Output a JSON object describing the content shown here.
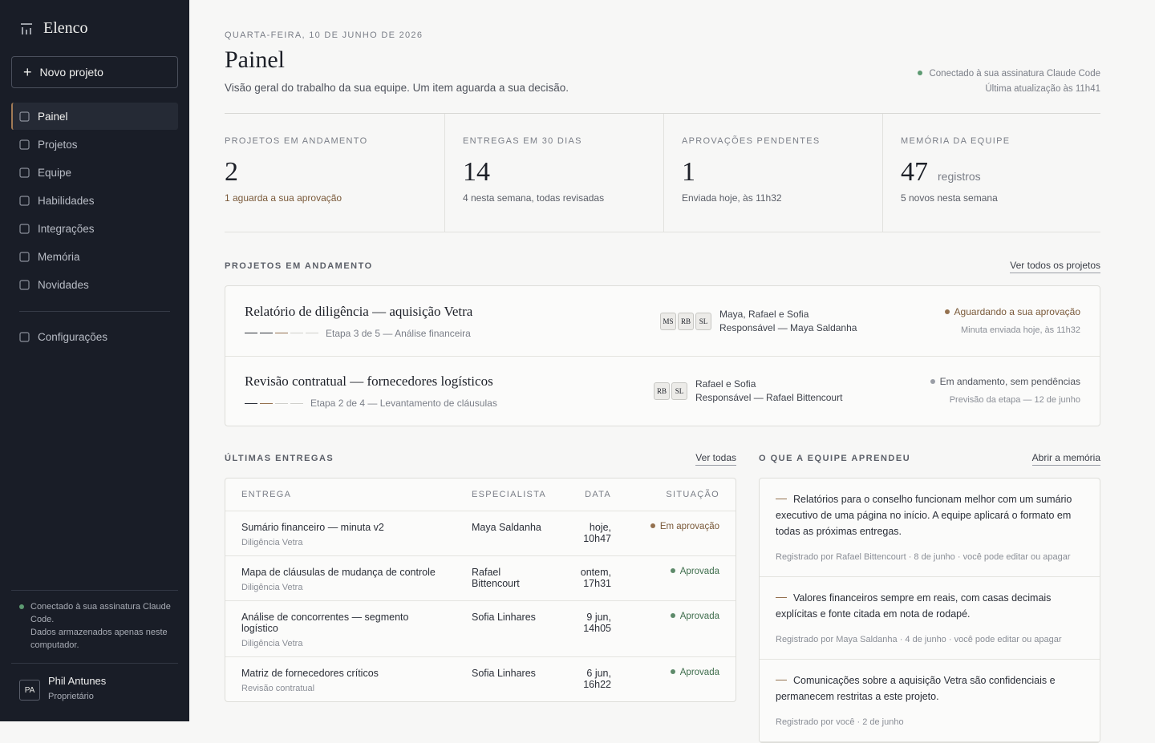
{
  "sidebar": {
    "brand": "Elenco",
    "new_project": "Novo projeto",
    "nav": [
      "Painel",
      "Projetos",
      "Equipe",
      "Habilidades",
      "Integrações",
      "Memória",
      "Novidades"
    ],
    "settings": "Configurações",
    "status": [
      "Conectado à sua assinatura Claude Code.",
      "Dados armazenados apenas neste computador."
    ],
    "user": {
      "initials": "PA",
      "name": "Phil Antunes",
      "role": "Proprietário"
    }
  },
  "header": {
    "date": "QUARTA-FEIRA, 10 DE JUNHO DE 2026",
    "title": "Painel",
    "subtitle": "Visão geral do trabalho da sua equipe. Um item aguarda a sua decisão.",
    "connection": "Conectado à sua assinatura Claude Code",
    "updated": "Última atualização às 11h41"
  },
  "stats": [
    {
      "label": "PROJETOS EM ANDAMENTO",
      "value": 2,
      "note": "1 aguarda a sua aprovação"
    },
    {
      "label": "ENTREGAS EM 30 DIAS",
      "value": 14,
      "note": "4 nesta semana, todas revisadas"
    },
    {
      "label": "APROVAÇÕES PENDENTES",
      "value": 1,
      "note": "Enviada hoje, às 11h32"
    },
    {
      "label": "MEMÓRIA DA EQUIPE",
      "value": 47,
      "unit": "registros",
      "note": "5 novos nesta semana"
    }
  ],
  "projects": {
    "title": "PROJETOS EM ANDAMENTO",
    "link": "Ver todos os projetos",
    "items": [
      {
        "name": "Relatório de diligência — aquisição Vetra",
        "stage": "Etapa 3 de 5 — Análise financeira",
        "initials": [
          "MS",
          "RB",
          "SL"
        ],
        "team": "Maya, Rafael e Sofia",
        "owner": "Responsável — Maya Saldanha",
        "status": "Aguardando a sua aprovação",
        "status_note": "Minuta enviada hoje, às 11h32"
      },
      {
        "name": "Revisão contratual — fornecedores logísticos",
        "stage": "Etapa 2 de 4 — Levantamento de cláusulas",
        "initials": [
          "RB",
          "SL"
        ],
        "team": "Rafael e Sofia",
        "owner": "Responsável — Rafael Bittencourt",
        "status": "Em andamento, sem pendências",
        "status_note": "Previsão da etapa — 12 de junho"
      }
    ]
  },
  "deliveries": {
    "title": "ÚLTIMAS ENTREGAS",
    "link": "Ver todas",
    "columns": [
      "ENTREGA",
      "ESPECIALISTA",
      "DATA",
      "SITUAÇÃO"
    ],
    "rows": [
      {
        "name": "Sumário financeiro — minuta v2",
        "project": "Diligência Vetra",
        "specialist": "Maya Saldanha",
        "date": "hoje, 10h47",
        "status": "Em aprovação"
      },
      {
        "name": "Mapa de cláusulas de mudança de controle",
        "project": "Diligência Vetra",
        "specialist": "Rafael Bittencourt",
        "date": "ontem, 17h31",
        "status": "Aprovada"
      },
      {
        "name": "Análise de concorrentes — segmento logístico",
        "project": "Diligência Vetra",
        "specialist": "Sofia Linhares",
        "date": "9 jun, 14h05",
        "status": "Aprovada"
      },
      {
        "name": "Matriz de fornecedores críticos",
        "project": "Revisão contratual",
        "specialist": "Sofia Linhares",
        "date": "6 jun, 16h22",
        "status": "Aprovada"
      }
    ]
  },
  "learnings": {
    "title": "O QUE A EQUIPE APRENDEU",
    "link": "Abrir a memória",
    "items": [
      {
        "text": "Relatórios para o conselho funcionam melhor com um sumário executivo de uma página no início. A equipe aplicará o formato em todas as próximas entregas.",
        "meta": "Registrado por Rafael Bittencourt · 8 de junho · você pode editar ou apagar"
      },
      {
        "text": "Valores financeiros sempre em reais, com casas decimais explícitas e fonte citada em nota de rodapé.",
        "meta": "Registrado por Maya Saldanha · 4 de junho · você pode editar ou apagar"
      },
      {
        "text": "Comunicações sobre a aquisição Vetra são confidenciais e permanecem restritas a este projeto.",
        "meta": "Registrado por você · 2 de junho"
      }
    ]
  }
}
